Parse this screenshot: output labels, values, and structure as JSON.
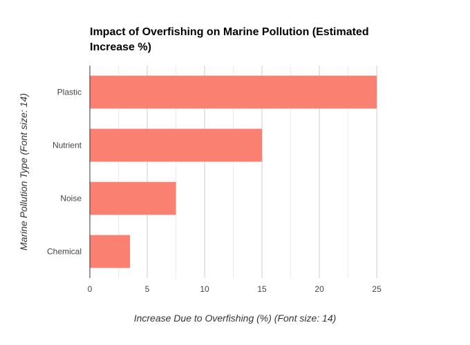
{
  "chart_data": {
    "type": "bar",
    "orientation": "horizontal",
    "title_lines": [
      "Impact of Overfishing on Marine Pollution (Estimated",
      "Increase %)"
    ],
    "categories": [
      "Plastic",
      "Nutrient",
      "Noise",
      "Chemical"
    ],
    "values": [
      25,
      15,
      7.5,
      3.5
    ],
    "xlabel": "Increase Due to Overfishing (%) (Font size: 14)",
    "ylabel": "Marine Pollution Type (Font size: 14)",
    "xlim": [
      0,
      26.5
    ],
    "xticks": [
      "0",
      "5",
      "10",
      "15",
      "20",
      "25"
    ],
    "grid": true,
    "legend": "none",
    "colors": {
      "bar": "#fa8072",
      "grid": "#d9d9d9",
      "axis": "#333333"
    }
  }
}
